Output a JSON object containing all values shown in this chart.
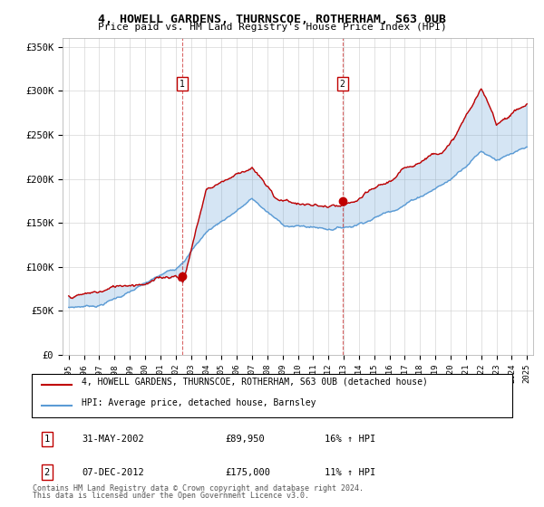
{
  "title": "4, HOWELL GARDENS, THURNSCOE, ROTHERHAM, S63 0UB",
  "subtitle": "Price paid vs. HM Land Registry's House Price Index (HPI)",
  "ylabel_ticks": [
    "£0",
    "£50K",
    "£100K",
    "£150K",
    "£200K",
    "£250K",
    "£300K",
    "£350K"
  ],
  "ytick_values": [
    0,
    50000,
    100000,
    150000,
    200000,
    250000,
    300000,
    350000
  ],
  "ylim": [
    0,
    360000
  ],
  "hpi_color": "#5b9bd5",
  "price_color": "#c00000",
  "fill_color": "#ddeeff",
  "marker1_x": 2002.42,
  "marker1_y": 89950,
  "marker2_x": 2012.92,
  "marker2_y": 175000,
  "marker1_label": "1",
  "marker2_label": "2",
  "marker1_date": "31-MAY-2002",
  "marker1_price": "£89,950",
  "marker1_hpi": "16% ↑ HPI",
  "marker2_date": "07-DEC-2012",
  "marker2_price": "£175,000",
  "marker2_hpi": "11% ↑ HPI",
  "legend_line1": "4, HOWELL GARDENS, THURNSCOE, ROTHERHAM, S63 0UB (detached house)",
  "legend_line2": "HPI: Average price, detached house, Barnsley",
  "footer1": "Contains HM Land Registry data © Crown copyright and database right 2024.",
  "footer2": "This data is licensed under the Open Government Licence v3.0.",
  "background_color": "#ffffff",
  "grid_color": "#cccccc",
  "xlim_start": 1994.6,
  "xlim_end": 2025.4
}
